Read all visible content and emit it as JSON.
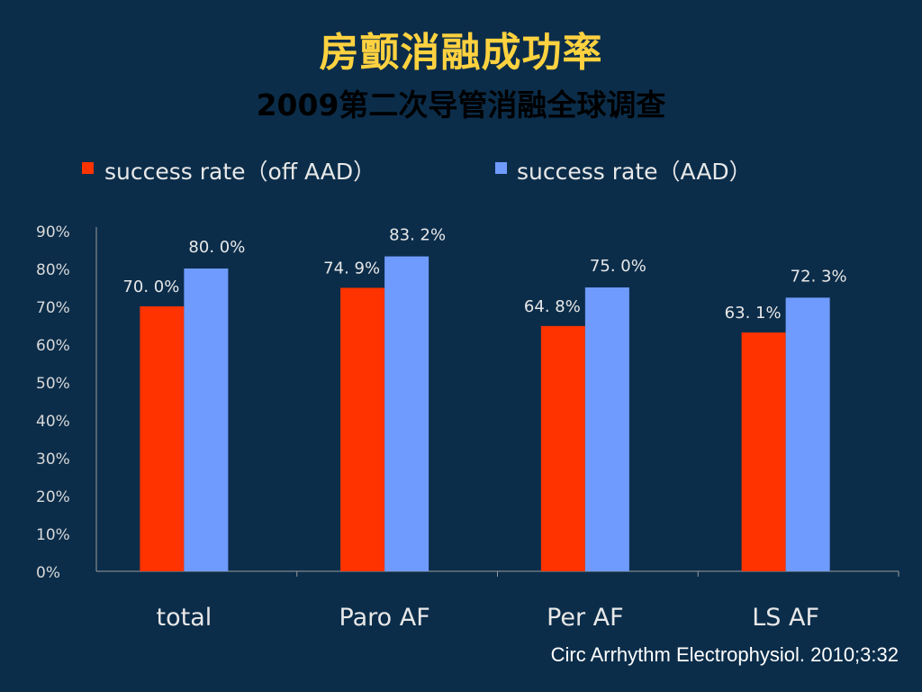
{
  "title": "房颤消融成功率",
  "subtitle": "2009第二次导管消融全球调查",
  "citation": "Circ Arrhythm Electrophysiol. 2010;3:32",
  "colors": {
    "off_aad": "#ff3300",
    "aad": "#6f9bff"
  },
  "chart_data": {
    "type": "bar",
    "categories": [
      "total",
      "Paro AF",
      "Per AF",
      "LS AF"
    ],
    "series": [
      {
        "name": "success rate（off AAD）",
        "values": [
          70.0,
          74.9,
          64.8,
          63.1
        ],
        "labels": [
          "70. 0%",
          "74. 9%",
          "64. 8%",
          "63. 1%"
        ]
      },
      {
        "name": "success rate（AAD）",
        "values": [
          80.0,
          83.2,
          75.0,
          72.3
        ],
        "labels": [
          "80. 0%",
          "83. 2%",
          "75. 0%",
          "72. 3%"
        ]
      }
    ],
    "ylim": [
      0,
      90
    ],
    "yticks": [
      "0%",
      "10%",
      "20%",
      "30%",
      "40%",
      "50%",
      "60%",
      "70%",
      "80%",
      "90%"
    ],
    "legend_position": "top",
    "grid": false
  }
}
